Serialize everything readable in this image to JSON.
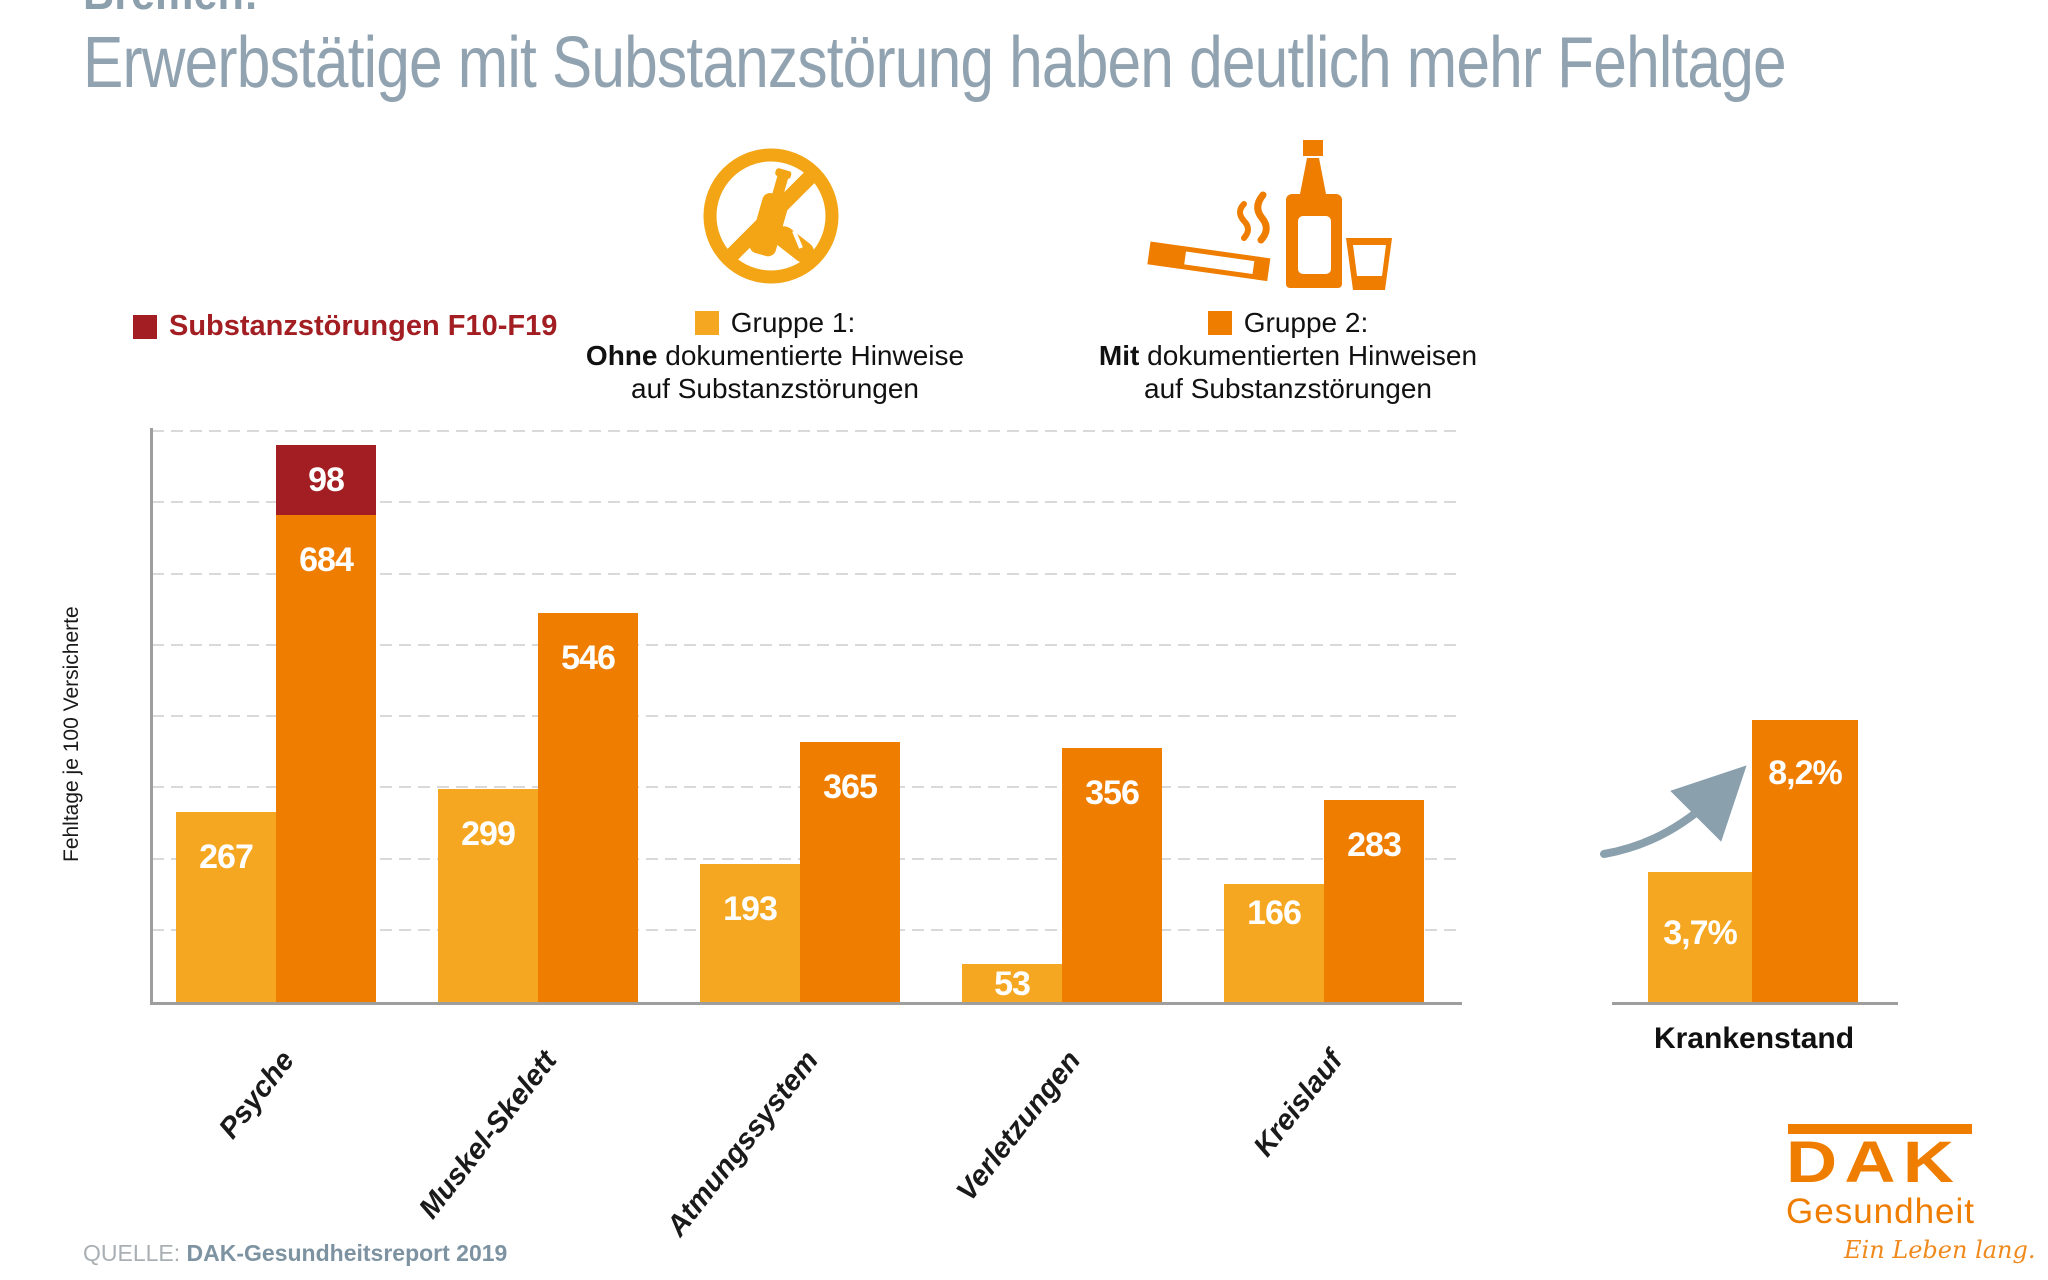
{
  "header": {
    "kicker": "Bremen:",
    "title": "Erwerbstätige mit Substanzstörung haben deutlich mehr Fehltage",
    "title_color": "#91A3B0"
  },
  "legend": {
    "substance": {
      "label": "Substanzstörungen F10-F19",
      "color": "#A21E22"
    },
    "group1": {
      "swatch_color": "#F6A722",
      "title": "Gruppe 1:",
      "line2_bold": "Ohne",
      "line2_rest": " dokumentierte Hinweise",
      "line3": "auf Substanzstörungen"
    },
    "group2": {
      "swatch_color": "#EF7D00",
      "title": "Gruppe 2:",
      "line2_bold": "Mit",
      "line2_rest": " dokumentierten Hinweisen",
      "line3": "auf Substanzstörungen"
    }
  },
  "chart_data": {
    "type": "bar",
    "title": "Erwerbstätige mit Substanzstörung haben deutlich mehr Fehltage",
    "ylabel": "Fehltage je 100 Versicherte",
    "ylim": [
      0,
      800
    ],
    "gridlines_every": 100,
    "grid_style": "dashed horizontal",
    "categories": [
      "Psyche",
      "Muskel-Skelett",
      "Atmungssystem",
      "Verletzungen",
      "Kreislauf"
    ],
    "series": [
      {
        "name": "Gruppe 1: Ohne dokumentierte Hinweise auf Substanzstörungen",
        "color": "#F6A722",
        "values": [
          267,
          299,
          193,
          53,
          166
        ]
      },
      {
        "name": "Gruppe 2: Mit dokumentierten Hinweisen auf Substanzstörungen",
        "color": "#EF7D00",
        "values": [
          684,
          546,
          365,
          356,
          283
        ]
      },
      {
        "name": "Substanzstörungen F10-F19",
        "color": "#A21E22",
        "stacked_on": "Gruppe 2",
        "values": [
          98,
          null,
          null,
          null,
          null
        ]
      }
    ],
    "mini_chart": {
      "type": "bar",
      "xlabel": "Krankenstand",
      "bars": [
        {
          "label": "3,7%",
          "value": 3.7,
          "color": "#F6A722"
        },
        {
          "label": "8,2%",
          "value": 8.2,
          "color": "#EF7D00"
        }
      ],
      "arrow": "up-right"
    }
  },
  "source": {
    "prefix": "QUELLE:",
    "text": "DAK-Gesundheitsreport 2019"
  },
  "logo": {
    "brand": "DAK",
    "subtitle": "Gesundheit",
    "tagline": "Ein Leben lang.",
    "color": "#EF7D00"
  }
}
